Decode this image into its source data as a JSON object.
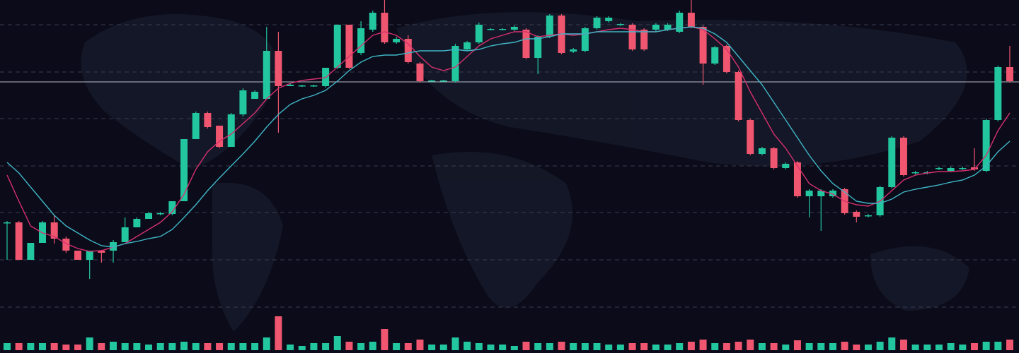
{
  "chart_data": {
    "type": "candlestick",
    "categories": [
      null,
      null,
      null,
      null,
      null,
      null,
      null,
      null,
      null,
      null,
      null,
      null,
      null,
      null,
      null,
      null,
      null,
      null,
      null,
      null,
      null,
      null,
      null,
      null,
      null,
      null,
      null,
      null,
      null,
      null,
      null,
      null,
      null,
      null,
      null,
      null,
      null,
      null,
      null,
      null,
      null,
      null,
      null,
      null,
      null,
      null,
      null,
      null,
      null,
      null,
      null,
      null,
      null,
      null,
      null,
      null,
      null,
      null,
      null,
      null,
      null,
      null,
      null,
      null,
      null,
      null,
      null,
      null,
      null,
      null,
      null,
      null,
      null,
      null,
      null,
      null,
      null,
      null,
      null,
      null,
      null,
      null,
      null,
      null,
      null,
      null
    ],
    "open": [
      184,
      185,
      132,
      156,
      185,
      162,
      145,
      132,
      145,
      145,
      157,
      178,
      190,
      197,
      197,
      215,
      303,
      340,
      322,
      292,
      338,
      360,
      360,
      428,
      378,
      378,
      378,
      378,
      404,
      465,
      425,
      458,
      482,
      440,
      445,
      410,
      385,
      385,
      385,
      430,
      440,
      458,
      458,
      458,
      458,
      418,
      448,
      478,
      427,
      428,
      460,
      470,
      465,
      465,
      458,
      458,
      458,
      455,
      482,
      462,
      410,
      435,
      398,
      330,
      282,
      290,
      262,
      270,
      222,
      222,
      222,
      232,
      200,
      194,
      195,
      235,
      305,
      255,
      255,
      261,
      258,
      261,
      263,
      258,
      330,
      405
    ],
    "high": [
      187,
      187,
      156,
      187,
      195,
      165,
      145,
      145,
      146,
      160,
      192,
      192,
      200,
      200,
      215,
      303,
      342,
      342,
      322,
      340,
      375,
      372,
      462,
      455,
      382,
      380,
      380,
      404,
      465,
      465,
      470,
      485,
      500,
      448,
      450,
      412,
      387,
      387,
      438,
      442,
      468,
      460,
      460,
      464,
      460,
      450,
      480,
      480,
      432,
      462,
      477,
      477,
      467,
      467,
      460,
      467,
      467,
      485,
      500,
      464,
      435,
      437,
      400,
      332,
      292,
      292,
      270,
      272,
      232,
      232,
      232,
      234,
      202,
      197,
      237,
      307,
      307,
      258,
      258,
      264,
      264,
      264,
      290,
      332,
      407,
      435
    ],
    "low": [
      132,
      132,
      132,
      156,
      155,
      142,
      132,
      105,
      128,
      128,
      157,
      178,
      190,
      195,
      195,
      215,
      303,
      318,
      290,
      292,
      335,
      360,
      360,
      312,
      378,
      377,
      377,
      376,
      402,
      402,
      422,
      455,
      438,
      438,
      410,
      383,
      384,
      384,
      383,
      428,
      438,
      457,
      457,
      456,
      416,
      395,
      446,
      423,
      425,
      426,
      458,
      468,
      463,
      428,
      428,
      456,
      456,
      453,
      460,
      380,
      408,
      396,
      328,
      280,
      280,
      260,
      260,
      220,
      192,
      173,
      220,
      196,
      185,
      192,
      193,
      233,
      250,
      253,
      253,
      259,
      256,
      259,
      258,
      256,
      328,
      383
    ],
    "close": [
      185,
      132,
      156,
      185,
      162,
      145,
      132,
      145,
      142,
      157,
      178,
      190,
      198,
      198,
      215,
      303,
      340,
      320,
      292,
      338,
      372,
      370,
      428,
      378,
      380,
      379,
      379,
      404,
      465,
      404,
      460,
      482,
      440,
      445,
      412,
      385,
      386,
      386,
      435,
      440,
      465,
      459,
      459,
      462,
      418,
      448,
      478,
      425,
      430,
      460,
      475,
      475,
      466,
      430,
      430,
      465,
      465,
      482,
      462,
      410,
      433,
      398,
      330,
      282,
      290,
      262,
      268,
      222,
      230,
      230,
      230,
      198,
      193,
      195,
      235,
      305,
      252,
      256,
      256,
      262,
      262,
      262,
      260,
      330,
      405,
      385
    ],
    "volume": [
      10,
      10,
      10,
      10,
      10,
      8,
      8,
      18,
      10,
      12,
      10,
      10,
      8,
      10,
      10,
      12,
      10,
      10,
      10,
      10,
      10,
      10,
      18,
      48,
      8,
      6,
      10,
      10,
      20,
      12,
      10,
      12,
      30,
      10,
      10,
      15,
      8,
      8,
      18,
      12,
      10,
      8,
      8,
      6,
      12,
      10,
      10,
      12,
      10,
      10,
      10,
      8,
      8,
      10,
      10,
      8,
      8,
      10,
      12,
      15,
      10,
      10,
      12,
      15,
      10,
      10,
      8,
      14,
      10,
      10,
      10,
      12,
      8,
      8,
      12,
      18,
      15,
      8,
      8,
      8,
      10,
      8,
      10,
      12,
      12,
      15
    ],
    "ma_lines": [
      {
        "color": "#d6306f",
        "values": [
          252,
          215,
          180,
          170,
          165,
          155,
          148,
          144,
          145,
          150,
          155,
          165,
          175,
          185,
          200,
          225,
          260,
          285,
          300,
          310,
          325,
          340,
          360,
          375,
          382,
          386,
          388,
          390,
          405,
          420,
          435,
          450,
          455,
          450,
          438,
          420,
          405,
          400,
          405,
          420,
          435,
          445,
          450,
          455,
          455,
          448,
          450,
          452,
          450,
          452,
          455,
          458,
          460,
          458,
          455,
          455,
          458,
          460,
          462,
          458,
          445,
          430,
          405,
          370,
          340,
          310,
          290,
          265,
          240,
          230,
          225,
          215,
          210,
          208,
          215,
          230,
          245,
          252,
          255,
          257,
          257,
          258,
          260,
          280,
          315,
          340
        ]
      },
      {
        "color": "#3fb6c6",
        "values": [
          270,
          255,
          235,
          215,
          195,
          180,
          170,
          160,
          152,
          150,
          155,
          158,
          162,
          165,
          175,
          192,
          210,
          230,
          248,
          265,
          282,
          300,
          320,
          338,
          352,
          360,
          365,
          372,
          385,
          400,
          412,
          420,
          422,
          422,
          425,
          428,
          428,
          428,
          430,
          428,
          430,
          435,
          438,
          440,
          445,
          445,
          448,
          452,
          452,
          452,
          455,
          455,
          455,
          455,
          455,
          455,
          458,
          460,
          462,
          460,
          452,
          440,
          420,
          400,
          380,
          355,
          330,
          305,
          280,
          258,
          240,
          228,
          215,
          212,
          212,
          218,
          228,
          232,
          235,
          238,
          242,
          245,
          252,
          265,
          285,
          300
        ]
      }
    ],
    "up_color": "#22c7a0",
    "down_color": "#f0566f",
    "ylim": [
      0,
      500
    ],
    "yticks": [
      65,
      132,
      199,
      265,
      332,
      398,
      465
    ],
    "grid": true,
    "y2lim": [
      0,
      500
    ],
    "price_line": 384
  }
}
